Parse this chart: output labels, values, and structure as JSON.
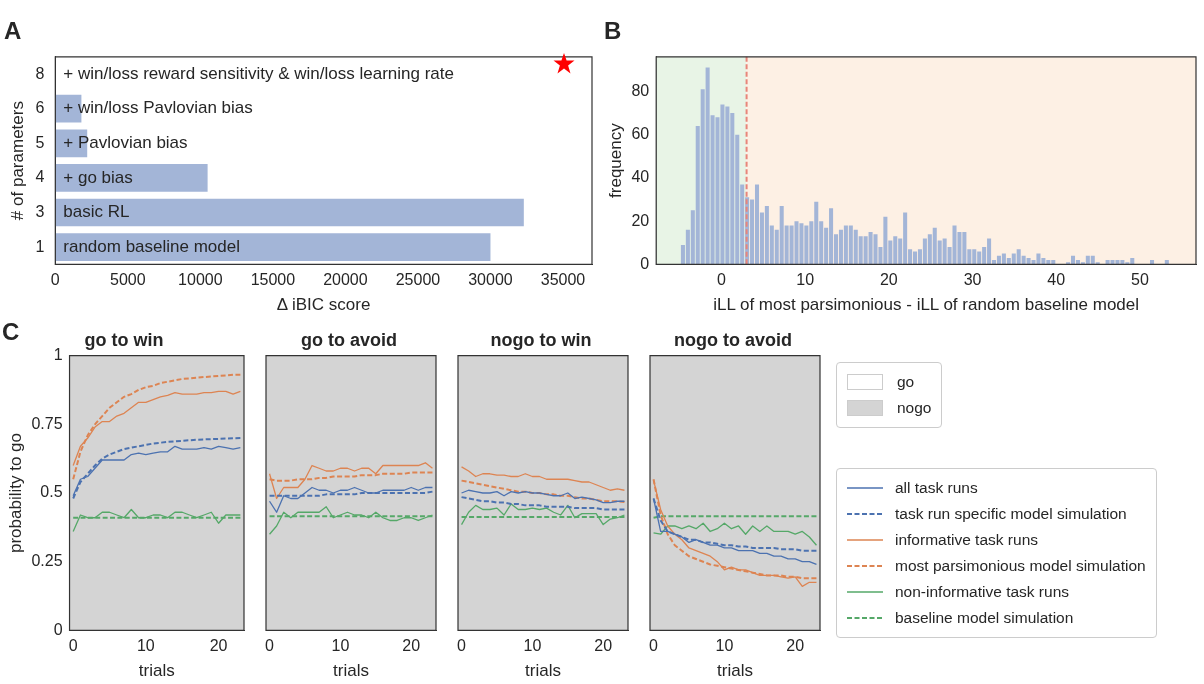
{
  "chart_data": [
    {
      "type": "bar",
      "title": "A",
      "orientation": "horizontal",
      "categories": [
        "8",
        "6",
        "5",
        "4",
        "3",
        "1"
      ],
      "values": [
        0,
        1800,
        2200,
        10500,
        32300,
        30000
      ],
      "color": "#a3b5d7",
      "xlim": [
        0,
        37000
      ],
      "xticks": [
        0,
        5000,
        10000,
        15000,
        20000,
        25000,
        30000,
        35000
      ],
      "xlabel": "Δ iBIC score",
      "ylabel": "# of parameters",
      "grid": false,
      "annotations": [
        "+ win/loss reward sensitivity & win/loss learning rate",
        "+ win/loss Pavlovian bias",
        "+ Pavlovian bias",
        "+ go bias",
        "basic RL",
        "random baseline model"
      ]
    },
    {
      "type": "histogram",
      "title": "B",
      "color": "#a3b5d7",
      "xlabel": "iLL of most parsimonious - iLL of random baseline model",
      "ylabel": "frequency",
      "grid": false,
      "bins": [
        -4.9,
        -4.31,
        -3.72,
        -3.13,
        -2.54,
        -1.95,
        -1.36,
        -0.77,
        -0.18,
        0.41,
        1.0,
        1.59,
        2.18,
        2.77,
        3.36,
        3.95,
        4.54,
        5.13,
        5.72,
        6.31,
        6.9,
        7.49,
        8.08,
        8.67,
        9.26,
        9.85,
        10.44,
        11.03,
        11.62,
        12.21,
        12.8,
        13.39,
        13.98,
        14.57,
        15.16,
        15.75,
        16.34,
        16.93,
        17.52,
        18.11,
        18.7,
        19.29,
        19.88,
        20.47,
        21.06,
        21.65,
        22.24,
        22.83,
        23.42,
        24.01,
        24.6,
        25.19,
        25.78,
        26.37,
        26.96,
        27.55,
        28.14,
        28.73,
        29.32,
        29.91,
        30.5,
        31.09,
        31.68,
        32.27,
        32.86,
        33.45,
        34.04,
        34.63,
        35.22,
        35.81,
        36.4,
        36.99,
        37.58,
        38.17,
        38.76,
        39.35,
        39.94,
        40.53,
        41.12,
        41.71,
        42.3,
        42.89,
        43.48,
        44.07,
        44.66,
        45.25,
        45.84,
        46.43,
        47.02,
        47.61,
        48.2,
        48.79,
        49.38,
        49.97,
        50.56,
        51.15,
        51.74,
        52.33,
        52.92,
        53.51
      ],
      "values": [
        9,
        16,
        25,
        64,
        81,
        91,
        69,
        68,
        74,
        73,
        70,
        60,
        37,
        31,
        30,
        37,
        24,
        27,
        18,
        16,
        27,
        18,
        18,
        20,
        19,
        18,
        20,
        29,
        20,
        17,
        26,
        14,
        16,
        18,
        18,
        16,
        13,
        13,
        15,
        14,
        8,
        22,
        11,
        13,
        12,
        24,
        7,
        6,
        7,
        12,
        14,
        17,
        11,
        12,
        8,
        18,
        15,
        15,
        7,
        7,
        6,
        8,
        12,
        2,
        4,
        5,
        3,
        5,
        7,
        4,
        3,
        2,
        5,
        3,
        2,
        2,
        0,
        0,
        1,
        4,
        2,
        1,
        4,
        4,
        1,
        0,
        2,
        2,
        2,
        2,
        1,
        3,
        0,
        0,
        0,
        2,
        0,
        0,
        2
      ],
      "xlim": [
        -7.8,
        56.7
      ],
      "xticks": [
        0,
        10,
        20,
        30,
        40,
        50
      ],
      "ylim": [
        0,
        96
      ],
      "yticks": [
        0,
        20,
        40,
        60,
        80
      ],
      "bands": [
        {
          "axis": "x",
          "from": -7.8,
          "to": 3,
          "color": "#e8f4e6"
        },
        {
          "axis": "x",
          "from": 3,
          "to": 56.7,
          "color": "#fdf0e4"
        }
      ],
      "ref_lines": [
        {
          "axis": "x",
          "value": 3,
          "color": "#e8857a",
          "line_style": "dashed"
        }
      ]
    },
    {
      "type": "line",
      "title": "go to win",
      "annotations": [
        "C"
      ],
      "xlabel": "trials",
      "ylabel": "probability to go",
      "grid": false,
      "xlim": [
        -0.5,
        23.5
      ],
      "xticks": [
        0,
        10,
        20
      ],
      "ylim": [
        0,
        1
      ],
      "yticks": [
        0,
        0.25,
        0.5,
        0.75,
        1
      ],
      "x": [
        0,
        1,
        2,
        3,
        4,
        5,
        6,
        7,
        8,
        9,
        10,
        11,
        12,
        13,
        14,
        15,
        16,
        17,
        18,
        19,
        20,
        21,
        22,
        23
      ],
      "series": [
        {
          "color": "#4c72b0",
          "values": [
            0.49,
            0.55,
            0.56,
            0.59,
            0.62,
            0.62,
            0.62,
            0.62,
            0.64,
            0.645,
            0.64,
            0.645,
            0.65,
            0.65,
            0.67,
            0.66,
            0.66,
            0.66,
            0.665,
            0.66,
            0.67,
            0.665,
            0.66,
            0.665
          ]
        },
        {
          "color": "#4c72b0",
          "line_style": "dashed",
          "values": [
            0.48,
            0.54,
            0.57,
            0.6,
            0.625,
            0.64,
            0.65,
            0.66,
            0.665,
            0.67,
            0.675,
            0.68,
            0.683,
            0.686,
            0.688,
            0.69,
            0.692,
            0.694,
            0.695,
            0.696,
            0.697,
            0.698,
            0.699,
            0.7
          ]
        },
        {
          "color": "#dd8452",
          "values": [
            0.6,
            0.67,
            0.7,
            0.74,
            0.76,
            0.76,
            0.78,
            0.79,
            0.81,
            0.83,
            0.83,
            0.84,
            0.85,
            0.855,
            0.865,
            0.86,
            0.86,
            0.86,
            0.865,
            0.865,
            0.87,
            0.87,
            0.86,
            0.87
          ]
        },
        {
          "color": "#dd8452",
          "line_style": "dashed",
          "values": [
            0.55,
            0.65,
            0.71,
            0.75,
            0.78,
            0.81,
            0.83,
            0.85,
            0.86,
            0.875,
            0.885,
            0.89,
            0.9,
            0.905,
            0.91,
            0.915,
            0.917,
            0.92,
            0.922,
            0.924,
            0.926,
            0.928,
            0.93,
            0.93
          ]
        },
        {
          "color": "#55a868",
          "values": [
            0.36,
            0.42,
            0.41,
            0.41,
            0.43,
            0.43,
            0.42,
            0.41,
            0.44,
            0.41,
            0.41,
            0.42,
            0.42,
            0.41,
            0.43,
            0.43,
            0.42,
            0.41,
            0.42,
            0.43,
            0.39,
            0.42,
            0.42,
            0.42
          ]
        },
        {
          "color": "#55a868",
          "line_style": "dashed",
          "values": [
            0.41,
            0.41,
            0.41,
            0.41,
            0.41,
            0.41,
            0.41,
            0.41,
            0.41,
            0.41,
            0.41,
            0.41,
            0.41,
            0.41,
            0.41,
            0.41,
            0.41,
            0.41,
            0.41,
            0.41,
            0.41,
            0.41,
            0.41,
            0.41
          ]
        }
      ]
    },
    {
      "type": "line",
      "title": "go to avoid",
      "xlabel": "trials",
      "tick_labels": "x",
      "grid": false,
      "xlim": [
        -0.5,
        23.5
      ],
      "xticks": [
        0,
        10,
        20
      ],
      "ylim": [
        0,
        1
      ],
      "yticks": [
        0,
        0.25,
        0.5,
        0.75,
        1
      ],
      "x": [
        0,
        1,
        2,
        3,
        4,
        5,
        6,
        7,
        8,
        9,
        10,
        11,
        12,
        13,
        14,
        15,
        16,
        17,
        18,
        19,
        20,
        21,
        22,
        23
      ],
      "series": [
        {
          "color": "#4c72b0",
          "values": [
            0.47,
            0.43,
            0.49,
            0.48,
            0.48,
            0.5,
            0.52,
            0.51,
            0.51,
            0.5,
            0.51,
            0.51,
            0.52,
            0.51,
            0.5,
            0.5,
            0.51,
            0.51,
            0.51,
            0.51,
            0.52,
            0.51,
            0.52,
            0.52
          ]
        },
        {
          "color": "#4c72b0",
          "line_style": "dashed",
          "values": [
            0.49,
            0.49,
            0.49,
            0.49,
            0.49,
            0.49,
            0.49,
            0.49,
            0.495,
            0.495,
            0.495,
            0.495,
            0.495,
            0.5,
            0.5,
            0.5,
            0.5,
            0.5,
            0.5,
            0.5,
            0.5,
            0.5,
            0.5,
            0.505
          ]
        },
        {
          "color": "#dd8452",
          "values": [
            0.57,
            0.48,
            0.52,
            0.52,
            0.52,
            0.55,
            0.6,
            0.59,
            0.58,
            0.58,
            0.59,
            0.59,
            0.58,
            0.59,
            0.59,
            0.57,
            0.6,
            0.6,
            0.6,
            0.6,
            0.6,
            0.6,
            0.61,
            0.59
          ]
        },
        {
          "color": "#dd8452",
          "line_style": "dashed",
          "values": [
            0.55,
            0.545,
            0.545,
            0.545,
            0.55,
            0.55,
            0.55,
            0.555,
            0.555,
            0.56,
            0.56,
            0.56,
            0.56,
            0.565,
            0.565,
            0.565,
            0.57,
            0.57,
            0.57,
            0.57,
            0.575,
            0.575,
            0.575,
            0.575
          ]
        },
        {
          "color": "#55a868",
          "values": [
            0.35,
            0.38,
            0.43,
            0.41,
            0.43,
            0.43,
            0.43,
            0.43,
            0.45,
            0.41,
            0.42,
            0.43,
            0.42,
            0.42,
            0.41,
            0.43,
            0.41,
            0.4,
            0.4,
            0.41,
            0.41,
            0.4,
            0.41,
            0.42
          ]
        },
        {
          "color": "#55a868",
          "line_style": "dashed",
          "values": [
            0.415,
            0.415,
            0.415,
            0.415,
            0.415,
            0.415,
            0.415,
            0.415,
            0.415,
            0.415,
            0.415,
            0.415,
            0.415,
            0.415,
            0.415,
            0.415,
            0.415,
            0.415,
            0.415,
            0.415,
            0.415,
            0.415,
            0.415,
            0.415
          ]
        }
      ]
    },
    {
      "type": "line",
      "title": "nogo to win",
      "xlabel": "trials",
      "tick_labels": "x",
      "grid": false,
      "xlim": [
        -0.5,
        23.5
      ],
      "xticks": [
        0,
        10,
        20
      ],
      "ylim": [
        0,
        1
      ],
      "yticks": [
        0,
        0.25,
        0.5,
        0.75,
        1
      ],
      "x": [
        0,
        1,
        2,
        3,
        4,
        5,
        6,
        7,
        8,
        9,
        10,
        11,
        12,
        13,
        14,
        15,
        16,
        17,
        18,
        19,
        20,
        21,
        22,
        23
      ],
      "series": [
        {
          "color": "#4c72b0",
          "values": [
            0.5,
            0.51,
            0.505,
            0.5,
            0.5,
            0.505,
            0.49,
            0.505,
            0.5,
            0.505,
            0.5,
            0.5,
            0.495,
            0.49,
            0.49,
            0.5,
            0.48,
            0.485,
            0.48,
            0.475,
            0.465,
            0.465,
            0.47,
            0.47
          ]
        },
        {
          "color": "#4c72b0",
          "line_style": "dashed",
          "values": [
            0.485,
            0.48,
            0.475,
            0.47,
            0.47,
            0.465,
            0.465,
            0.46,
            0.46,
            0.455,
            0.455,
            0.455,
            0.45,
            0.45,
            0.45,
            0.45,
            0.445,
            0.445,
            0.445,
            0.445,
            0.44,
            0.44,
            0.44,
            0.44
          ]
        },
        {
          "color": "#dd8452",
          "values": [
            0.595,
            0.58,
            0.56,
            0.57,
            0.57,
            0.565,
            0.565,
            0.56,
            0.56,
            0.57,
            0.56,
            0.56,
            0.55,
            0.55,
            0.55,
            0.55,
            0.545,
            0.54,
            0.54,
            0.53,
            0.52,
            0.51,
            0.515,
            0.51
          ]
        },
        {
          "color": "#dd8452",
          "line_style": "dashed",
          "values": [
            0.545,
            0.54,
            0.535,
            0.53,
            0.525,
            0.52,
            0.515,
            0.51,
            0.505,
            0.505,
            0.5,
            0.5,
            0.495,
            0.495,
            0.49,
            0.49,
            0.485,
            0.48,
            0.48,
            0.475,
            0.47,
            0.47,
            0.47,
            0.467
          ]
        },
        {
          "color": "#55a868",
          "values": [
            0.385,
            0.43,
            0.455,
            0.44,
            0.44,
            0.445,
            0.42,
            0.46,
            0.44,
            0.44,
            0.445,
            0.44,
            0.445,
            0.43,
            0.42,
            0.455,
            0.41,
            0.425,
            0.425,
            0.425,
            0.385,
            0.405,
            0.41,
            0.42
          ]
        },
        {
          "color": "#55a868",
          "line_style": "dashed",
          "values": [
            0.413,
            0.413,
            0.413,
            0.413,
            0.413,
            0.413,
            0.413,
            0.413,
            0.413,
            0.413,
            0.413,
            0.413,
            0.413,
            0.413,
            0.413,
            0.413,
            0.413,
            0.413,
            0.413,
            0.413,
            0.413,
            0.413,
            0.413,
            0.413
          ]
        }
      ]
    },
    {
      "type": "line",
      "title": "nogo to avoid",
      "xlabel": "trials",
      "tick_labels": "x",
      "grid": false,
      "legend": "right",
      "annotations": [
        "go",
        "nogo"
      ],
      "xlim": [
        -0.5,
        23.5
      ],
      "xticks": [
        0,
        10,
        20
      ],
      "ylim": [
        0,
        1
      ],
      "yticks": [
        0,
        0.25,
        0.5,
        0.75,
        1
      ],
      "x": [
        0,
        1,
        2,
        3,
        4,
        5,
        6,
        7,
        8,
        9,
        10,
        11,
        12,
        13,
        14,
        15,
        16,
        17,
        18,
        19,
        20,
        21,
        22,
        23
      ],
      "series": [
        {
          "name": "all task runs",
          "color": "#4c72b0",
          "values": [
            0.48,
            0.36,
            0.36,
            0.35,
            0.34,
            0.32,
            0.33,
            0.32,
            0.31,
            0.31,
            0.3,
            0.3,
            0.29,
            0.29,
            0.29,
            0.28,
            0.28,
            0.27,
            0.27,
            0.26,
            0.26,
            0.25,
            0.25,
            0.24
          ]
        },
        {
          "name": "task run specific model simulation",
          "color": "#4c72b0",
          "line_style": "dashed",
          "values": [
            0.48,
            0.4,
            0.36,
            0.35,
            0.34,
            0.33,
            0.33,
            0.32,
            0.32,
            0.315,
            0.31,
            0.31,
            0.305,
            0.305,
            0.3,
            0.3,
            0.3,
            0.3,
            0.295,
            0.295,
            0.295,
            0.29,
            0.29,
            0.29
          ]
        },
        {
          "name": "informative task runs",
          "color": "#dd8452",
          "values": [
            0.547,
            0.44,
            0.38,
            0.35,
            0.33,
            0.3,
            0.29,
            0.28,
            0.27,
            0.25,
            0.22,
            0.23,
            0.22,
            0.22,
            0.21,
            0.2,
            0.2,
            0.2,
            0.195,
            0.19,
            0.195,
            0.16,
            0.175,
            0.175
          ]
        },
        {
          "name": "most parsimonious model simulation",
          "color": "#dd8452",
          "line_style": "dashed",
          "values": [
            0.55,
            0.42,
            0.35,
            0.31,
            0.29,
            0.27,
            0.26,
            0.25,
            0.24,
            0.235,
            0.23,
            0.225,
            0.22,
            0.215,
            0.21,
            0.205,
            0.2,
            0.2,
            0.2,
            0.195,
            0.195,
            0.19,
            0.19,
            0.19
          ]
        },
        {
          "name": "non-informative task runs",
          "color": "#55a868",
          "values": [
            0.355,
            0.35,
            0.38,
            0.38,
            0.37,
            0.38,
            0.37,
            0.39,
            0.36,
            0.37,
            0.39,
            0.37,
            0.38,
            0.35,
            0.38,
            0.36,
            0.38,
            0.36,
            0.36,
            0.36,
            0.35,
            0.36,
            0.34,
            0.31
          ]
        },
        {
          "name": "baseline model simulation",
          "color": "#55a868",
          "line_style": "dashed",
          "values": [
            0.41,
            0.415,
            0.415,
            0.415,
            0.415,
            0.415,
            0.415,
            0.415,
            0.415,
            0.415,
            0.415,
            0.415,
            0.415,
            0.415,
            0.415,
            0.415,
            0.415,
            0.415,
            0.415,
            0.415,
            0.415,
            0.415,
            0.415,
            0.415
          ]
        }
      ]
    }
  ]
}
